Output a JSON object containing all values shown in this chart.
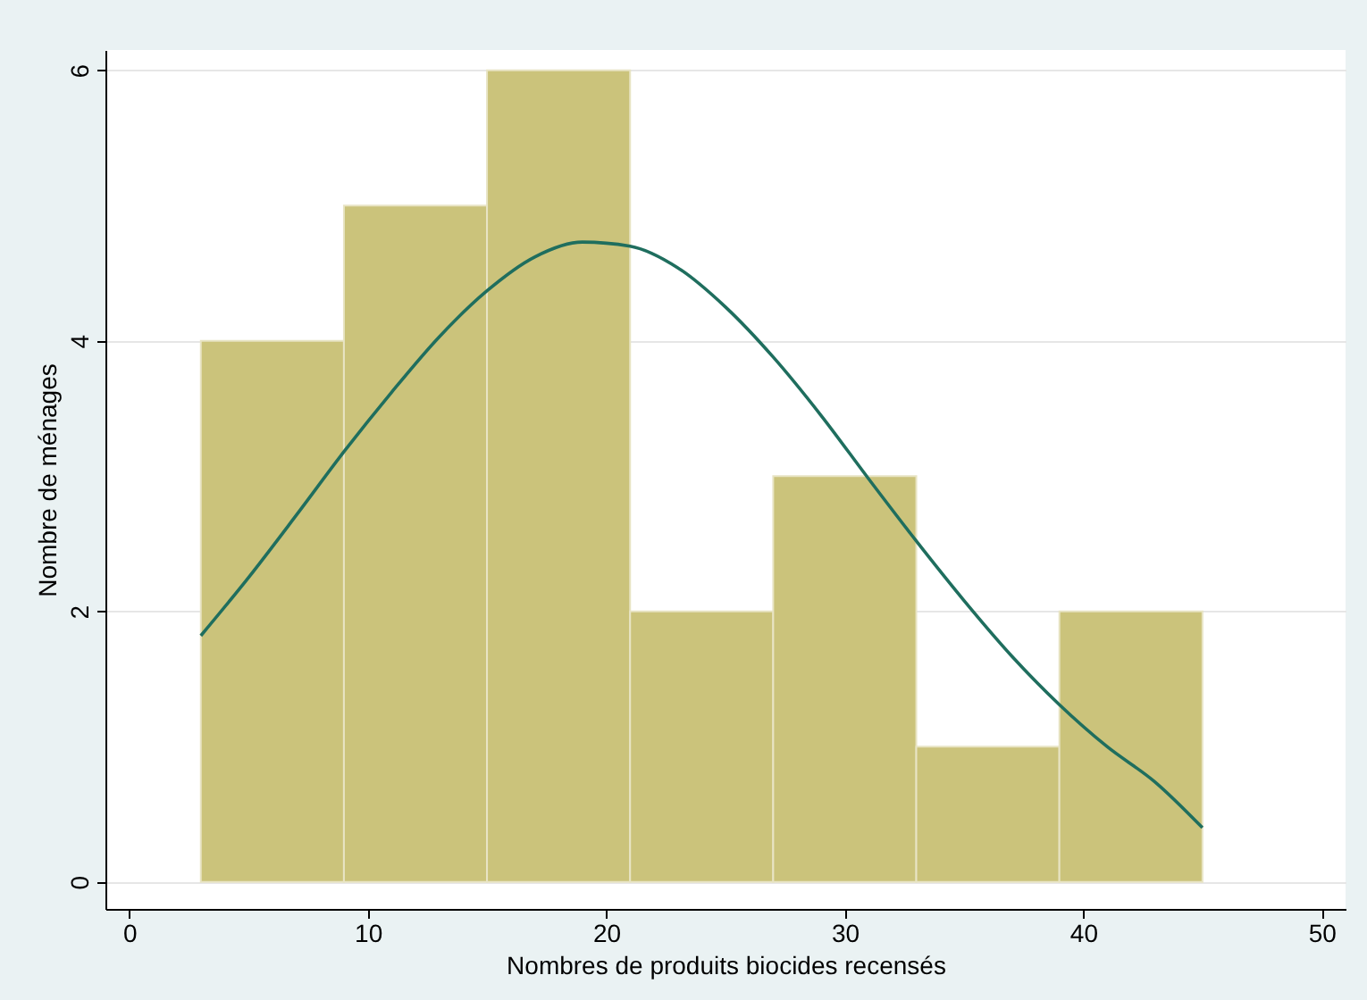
{
  "chart_data": {
    "type": "histogram",
    "xlabel": "Nombres de produits biocides recensés",
    "ylabel": "Nombre de ménages",
    "bins": [
      3,
      9,
      15,
      21,
      27,
      33,
      39,
      45
    ],
    "values": [
      4,
      5,
      6,
      2,
      3,
      1,
      2
    ],
    "color": "#cbc37b",
    "series": [
      {
        "type": "line",
        "color": "#1f6e5e",
        "x": [
          3,
          5,
          7,
          9,
          11,
          13,
          15,
          17,
          19,
          21,
          23,
          25,
          27,
          29,
          31,
          33,
          35,
          37,
          39,
          41,
          43,
          45
        ],
        "values": [
          1.82,
          2.25,
          2.71,
          3.18,
          3.62,
          4.03,
          4.37,
          4.62,
          4.73,
          4.7,
          4.54,
          4.25,
          3.88,
          3.45,
          2.98,
          2.52,
          2.08,
          1.67,
          1.31,
          1.0,
          0.74,
          0.4
        ]
      }
    ],
    "xlim": [
      -1,
      51
    ],
    "xticks": [
      0,
      10,
      20,
      30,
      40,
      50
    ],
    "ylim": [
      -0.2,
      6.15
    ],
    "yticks": [
      0,
      2,
      4,
      6
    ],
    "grid": "y"
  }
}
